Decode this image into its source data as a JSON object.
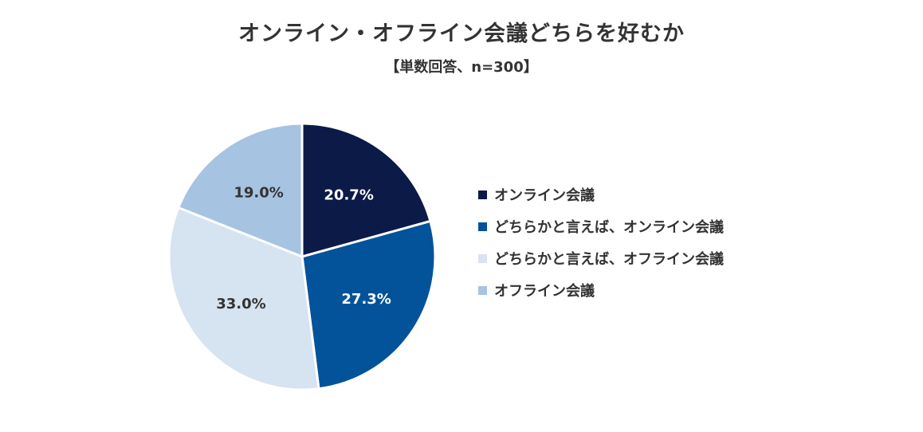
{
  "chart_data": {
    "type": "pie",
    "title": "オンライン・オフライン会議どちらを好むか",
    "subtitle": "【単数回答、n=300】",
    "slices": [
      {
        "label": "オンライン会議",
        "value": 20.7,
        "display": "20.7%",
        "color": "#0c1a47",
        "text_color": "#ffffff"
      },
      {
        "label": "どちらかと言えば、オンライン会議",
        "value": 27.3,
        "display": "27.3%",
        "color": "#03539a",
        "text_color": "#ffffff"
      },
      {
        "label": "どちらかと言えば、オフライン会議",
        "value": 33.0,
        "display": "33.0%",
        "color": "#d6e3f0",
        "text_color": "#333333"
      },
      {
        "label": "オフライン会議",
        "value": 19.0,
        "display": "19.0%",
        "color": "#a6c3e2",
        "text_color": "#333333"
      }
    ],
    "start": "12 o'clock",
    "direction": "clockwise",
    "legend_position": "right"
  }
}
